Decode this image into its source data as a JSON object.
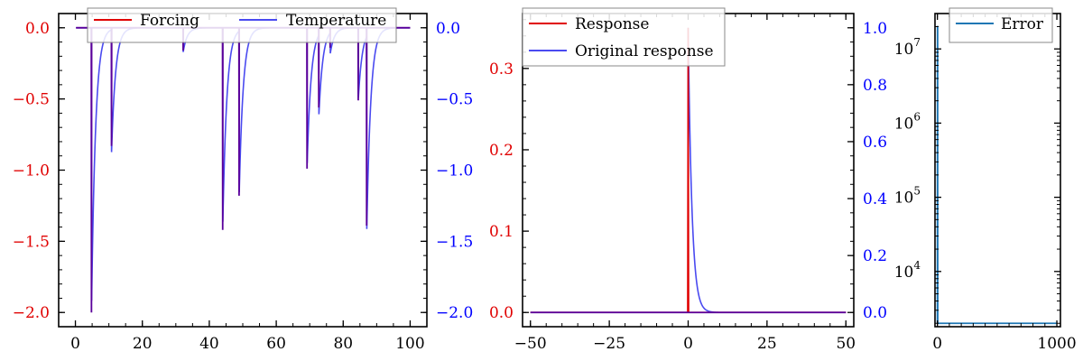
{
  "colors": {
    "red": "#e00000",
    "blue": "#0000ff",
    "blue_line": "#4a4af0",
    "overlap": "#5a009a",
    "error_line": "#1f77b4",
    "axis": "#000000"
  },
  "chart_data": [
    {
      "type": "line",
      "grid": false,
      "legend": {
        "placement": "top",
        "entries": [
          "Forcing",
          "Temperature"
        ]
      },
      "xlim": [
        -5,
        105
      ],
      "xticks": [
        0,
        20,
        40,
        60,
        80,
        100
      ],
      "ylim_left": [
        -2.1,
        0.1
      ],
      "yticks_left": [
        0.0,
        -0.5,
        -1.0,
        -1.5,
        -2.0
      ],
      "yticks_left_labels": [
        "0.0",
        "−0.5",
        "−1.0",
        "−1.5",
        "−2.0"
      ],
      "ylim_right": [
        -2.1,
        0.1
      ],
      "yticks_right": [
        0.0,
        -0.5,
        -1.0,
        -1.5,
        -2.0
      ],
      "yticks_right_labels": [
        "0.0",
        "−0.5",
        "−1.0",
        "−1.5",
        "−2.0"
      ],
      "series": [
        {
          "name": "Forcing",
          "axis": "left",
          "kind": "spikes",
          "x": [
            4.8,
            10.8,
            32.2,
            44.0,
            48.9,
            69.2,
            72.7,
            76.1,
            84.5,
            87.0
          ],
          "y": [
            -2.0,
            -0.83,
            -0.16,
            -1.42,
            -1.18,
            -0.99,
            -0.56,
            -0.14,
            -0.51,
            -1.39
          ]
        },
        {
          "name": "Temperature",
          "axis": "right",
          "kind": "decay",
          "tau": 1.2,
          "x": [
            4.8,
            10.8,
            32.2,
            44.0,
            48.9,
            69.2,
            72.7,
            76.1,
            84.5,
            87.0
          ],
          "y": [
            -2.0,
            -0.86,
            -0.17,
            -1.42,
            -1.18,
            -0.99,
            -0.58,
            -0.15,
            -0.51,
            -1.41
          ]
        }
      ]
    },
    {
      "type": "line",
      "grid": false,
      "legend": {
        "placement": "top-left",
        "entries": [
          "Response",
          "Original response"
        ]
      },
      "xlim": [
        -52.5,
        52.5
      ],
      "xticks": [
        -50,
        -25,
        0,
        25,
        50
      ],
      "xticks_labels": [
        "−50",
        "−25",
        "0",
        "25",
        "50"
      ],
      "ylim_left": [
        -0.0175,
        0.3675
      ],
      "yticks_left": [
        0.0,
        0.1,
        0.2,
        0.3
      ],
      "yticks_left_labels": [
        "0.0",
        "0.1",
        "0.2",
        "0.3"
      ],
      "ylim_right": [
        -0.05,
        1.05
      ],
      "yticks_right": [
        0.0,
        0.2,
        0.4,
        0.6,
        0.8,
        1.0
      ],
      "yticks_right_labels": [
        "0.0",
        "0.2",
        "0.4",
        "0.6",
        "0.8",
        "1.0"
      ],
      "series": [
        {
          "name": "Response",
          "axis": "left",
          "kind": "spike",
          "x": [
            0
          ],
          "y": [
            0.35
          ]
        },
        {
          "name": "Original response",
          "axis": "right",
          "kind": "decay",
          "tau": 1.2,
          "x": [
            0
          ],
          "y": [
            1.0
          ]
        }
      ]
    },
    {
      "type": "line",
      "grid": false,
      "legend": {
        "placement": "top-right",
        "entries": [
          "Error"
        ]
      },
      "xlim": [
        -20,
        1030
      ],
      "xticks": [
        0,
        1000
      ],
      "yscale": "log",
      "ylim": [
        1800,
        30000000
      ],
      "yticks": [
        10000,
        100000,
        1000000,
        10000000
      ],
      "yticks_labels": [
        [
          "10",
          "4"
        ],
        [
          "10",
          "5"
        ],
        [
          "10",
          "6"
        ],
        [
          "10",
          "7"
        ]
      ],
      "series": [
        {
          "name": "Error",
          "axis": "left",
          "x": [
            0,
            1,
            2,
            3,
            5,
            1000
          ],
          "y": [
            2000,
            20000000,
            20000000,
            2000,
            2000,
            2000
          ]
        }
      ]
    }
  ]
}
